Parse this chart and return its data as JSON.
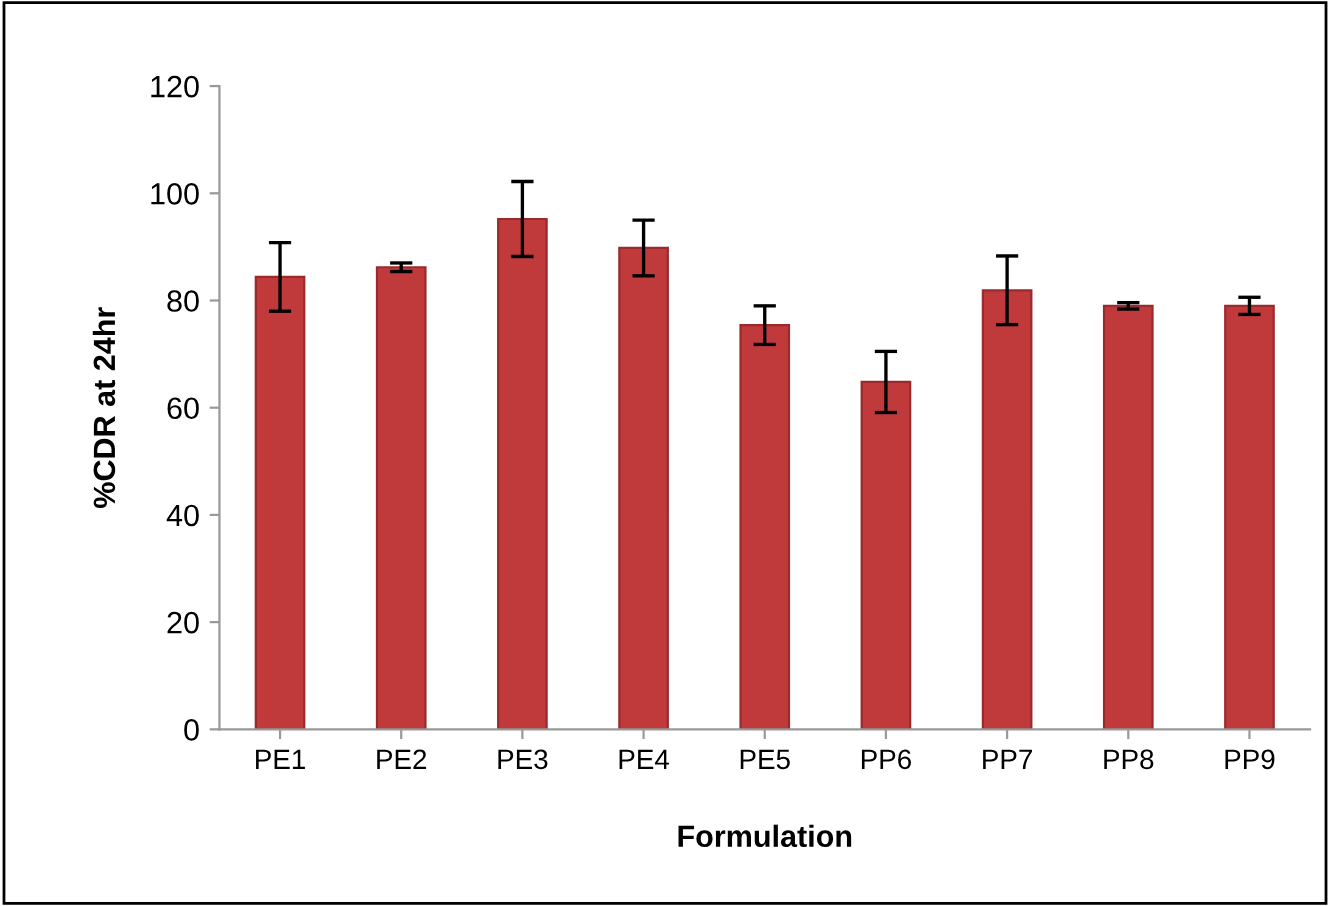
{
  "chart_data": {
    "type": "bar",
    "xlabel": "Formulation",
    "ylabel": "%CDR at 24hr",
    "categories": [
      "PE1",
      "PE2",
      "PE3",
      "PE4",
      "PE5",
      "PP6",
      "PP7",
      "PP8",
      "PP9"
    ],
    "values": [
      84.4,
      86.2,
      95.2,
      89.8,
      75.4,
      64.8,
      81.9,
      79.0,
      79.0
    ],
    "errors": [
      6.4,
      0.8,
      7,
      5.2,
      3.6,
      5.7,
      6.4,
      0.6,
      1.6
    ],
    "color": "#c0393b",
    "ylim": [
      0,
      120
    ],
    "yticks": [
      0,
      20,
      40,
      60,
      80,
      100,
      120
    ],
    "grid": false,
    "legend": false
  }
}
